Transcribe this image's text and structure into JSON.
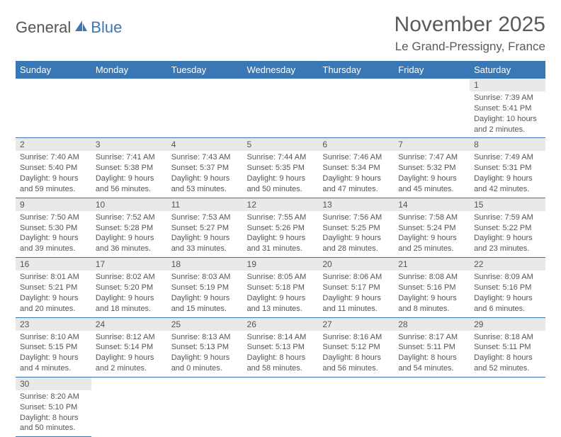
{
  "logo": {
    "part1": "General",
    "part2": "Blue"
  },
  "title": "November 2025",
  "location": "Le Grand-Pressigny, France",
  "colors": {
    "header_bg": "#3a78b5",
    "daynum_bg": "#e9e9e9",
    "row_border": "#3a78b5",
    "text": "#555"
  },
  "calendar": {
    "type": "table",
    "columns": [
      "Sunday",
      "Monday",
      "Tuesday",
      "Wednesday",
      "Thursday",
      "Friday",
      "Saturday"
    ],
    "weeks": [
      [
        null,
        null,
        null,
        null,
        null,
        null,
        {
          "n": "1",
          "sr": "Sunrise: 7:39 AM",
          "ss": "Sunset: 5:41 PM",
          "dl": "Daylight: 10 hours and 2 minutes."
        }
      ],
      [
        {
          "n": "2",
          "sr": "Sunrise: 7:40 AM",
          "ss": "Sunset: 5:40 PM",
          "dl": "Daylight: 9 hours and 59 minutes."
        },
        {
          "n": "3",
          "sr": "Sunrise: 7:41 AM",
          "ss": "Sunset: 5:38 PM",
          "dl": "Daylight: 9 hours and 56 minutes."
        },
        {
          "n": "4",
          "sr": "Sunrise: 7:43 AM",
          "ss": "Sunset: 5:37 PM",
          "dl": "Daylight: 9 hours and 53 minutes."
        },
        {
          "n": "5",
          "sr": "Sunrise: 7:44 AM",
          "ss": "Sunset: 5:35 PM",
          "dl": "Daylight: 9 hours and 50 minutes."
        },
        {
          "n": "6",
          "sr": "Sunrise: 7:46 AM",
          "ss": "Sunset: 5:34 PM",
          "dl": "Daylight: 9 hours and 47 minutes."
        },
        {
          "n": "7",
          "sr": "Sunrise: 7:47 AM",
          "ss": "Sunset: 5:32 PM",
          "dl": "Daylight: 9 hours and 45 minutes."
        },
        {
          "n": "8",
          "sr": "Sunrise: 7:49 AM",
          "ss": "Sunset: 5:31 PM",
          "dl": "Daylight: 9 hours and 42 minutes."
        }
      ],
      [
        {
          "n": "9",
          "sr": "Sunrise: 7:50 AM",
          "ss": "Sunset: 5:30 PM",
          "dl": "Daylight: 9 hours and 39 minutes."
        },
        {
          "n": "10",
          "sr": "Sunrise: 7:52 AM",
          "ss": "Sunset: 5:28 PM",
          "dl": "Daylight: 9 hours and 36 minutes."
        },
        {
          "n": "11",
          "sr": "Sunrise: 7:53 AM",
          "ss": "Sunset: 5:27 PM",
          "dl": "Daylight: 9 hours and 33 minutes."
        },
        {
          "n": "12",
          "sr": "Sunrise: 7:55 AM",
          "ss": "Sunset: 5:26 PM",
          "dl": "Daylight: 9 hours and 31 minutes."
        },
        {
          "n": "13",
          "sr": "Sunrise: 7:56 AM",
          "ss": "Sunset: 5:25 PM",
          "dl": "Daylight: 9 hours and 28 minutes."
        },
        {
          "n": "14",
          "sr": "Sunrise: 7:58 AM",
          "ss": "Sunset: 5:24 PM",
          "dl": "Daylight: 9 hours and 25 minutes."
        },
        {
          "n": "15",
          "sr": "Sunrise: 7:59 AM",
          "ss": "Sunset: 5:22 PM",
          "dl": "Daylight: 9 hours and 23 minutes."
        }
      ],
      [
        {
          "n": "16",
          "sr": "Sunrise: 8:01 AM",
          "ss": "Sunset: 5:21 PM",
          "dl": "Daylight: 9 hours and 20 minutes."
        },
        {
          "n": "17",
          "sr": "Sunrise: 8:02 AM",
          "ss": "Sunset: 5:20 PM",
          "dl": "Daylight: 9 hours and 18 minutes."
        },
        {
          "n": "18",
          "sr": "Sunrise: 8:03 AM",
          "ss": "Sunset: 5:19 PM",
          "dl": "Daylight: 9 hours and 15 minutes."
        },
        {
          "n": "19",
          "sr": "Sunrise: 8:05 AM",
          "ss": "Sunset: 5:18 PM",
          "dl": "Daylight: 9 hours and 13 minutes."
        },
        {
          "n": "20",
          "sr": "Sunrise: 8:06 AM",
          "ss": "Sunset: 5:17 PM",
          "dl": "Daylight: 9 hours and 11 minutes."
        },
        {
          "n": "21",
          "sr": "Sunrise: 8:08 AM",
          "ss": "Sunset: 5:16 PM",
          "dl": "Daylight: 9 hours and 8 minutes."
        },
        {
          "n": "22",
          "sr": "Sunrise: 8:09 AM",
          "ss": "Sunset: 5:16 PM",
          "dl": "Daylight: 9 hours and 6 minutes."
        }
      ],
      [
        {
          "n": "23",
          "sr": "Sunrise: 8:10 AM",
          "ss": "Sunset: 5:15 PM",
          "dl": "Daylight: 9 hours and 4 minutes."
        },
        {
          "n": "24",
          "sr": "Sunrise: 8:12 AM",
          "ss": "Sunset: 5:14 PM",
          "dl": "Daylight: 9 hours and 2 minutes."
        },
        {
          "n": "25",
          "sr": "Sunrise: 8:13 AM",
          "ss": "Sunset: 5:13 PM",
          "dl": "Daylight: 9 hours and 0 minutes."
        },
        {
          "n": "26",
          "sr": "Sunrise: 8:14 AM",
          "ss": "Sunset: 5:13 PM",
          "dl": "Daylight: 8 hours and 58 minutes."
        },
        {
          "n": "27",
          "sr": "Sunrise: 8:16 AM",
          "ss": "Sunset: 5:12 PM",
          "dl": "Daylight: 8 hours and 56 minutes."
        },
        {
          "n": "28",
          "sr": "Sunrise: 8:17 AM",
          "ss": "Sunset: 5:11 PM",
          "dl": "Daylight: 8 hours and 54 minutes."
        },
        {
          "n": "29",
          "sr": "Sunrise: 8:18 AM",
          "ss": "Sunset: 5:11 PM",
          "dl": "Daylight: 8 hours and 52 minutes."
        }
      ],
      [
        {
          "n": "30",
          "sr": "Sunrise: 8:20 AM",
          "ss": "Sunset: 5:10 PM",
          "dl": "Daylight: 8 hours and 50 minutes."
        },
        null,
        null,
        null,
        null,
        null,
        null
      ]
    ]
  }
}
